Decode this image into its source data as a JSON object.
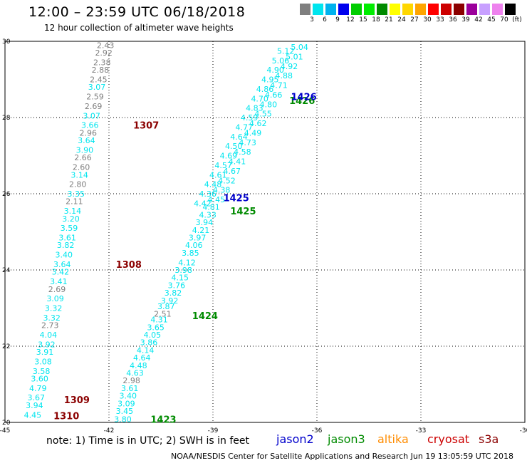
{
  "header": {
    "title": "12:00 – 23:59 UTC 06/18/2018",
    "subtitle": "12 hour collection of altimeter wave heights"
  },
  "legend_scale": {
    "labels": [
      "3",
      "6",
      "9",
      "12",
      "15",
      "18",
      "21",
      "24",
      "27",
      "30",
      "33",
      "36",
      "39",
      "42",
      "45",
      "70",
      "(ft)"
    ],
    "colors": [
      "#7f7f7f",
      "#00e5ee",
      "#00b2ee",
      "#0000ee",
      "#00cd00",
      "#00ee00",
      "#008b00",
      "#ffff00",
      "#ffd700",
      "#ffa500",
      "#ff0000",
      "#cd0000",
      "#8b0000",
      "#9b009b",
      "#c8a0ff",
      "#ee82ee",
      "#000000"
    ]
  },
  "footer": {
    "note": "note: 1) Time is in UTC; 2) SWH is in feet",
    "credit": "NOAA/NESDIS Center for Satellite Applications and Research     Jun 19 13:05:59 UTC 2018"
  },
  "satellites": [
    {
      "name": "jason2",
      "color": "#0000cc"
    },
    {
      "name": "jason3",
      "color": "#008b00"
    },
    {
      "name": "altika",
      "color": "#ff8c00"
    },
    {
      "name": "cryosat",
      "color": "#cc0000"
    },
    {
      "name": "s3a",
      "color": "#8b0000"
    }
  ],
  "chart_data": {
    "type": "scatter",
    "xlim": [
      -45,
      -30
    ],
    "ylim": [
      20,
      30
    ],
    "x_ticks": [
      "-45",
      "-42",
      "-39",
      "-36",
      "-33",
      "-30"
    ],
    "y_ticks": [
      "20",
      "22",
      "24",
      "26",
      "28",
      "30"
    ],
    "grid": true,
    "tracks": [
      {
        "satellite": "s3a",
        "time_labels": [
          {
            "text": "1307",
            "x": -41.3,
            "y": 27.8
          },
          {
            "text": "1308",
            "x": -41.8,
            "y": 24.15
          },
          {
            "text": "1309",
            "x": -43.3,
            "y": 20.6
          },
          {
            "text": "1310",
            "x": -43.6,
            "y": 20.18
          }
        ],
        "points": [
          {
            "x": -42.1,
            "y": 29.9,
            "v": "2.43",
            "c": "#7f7f7f"
          },
          {
            "x": -42.15,
            "y": 29.7,
            "v": "2.92",
            "c": "#7f7f7f"
          },
          {
            "x": -42.2,
            "y": 29.45,
            "v": "2.38",
            "c": "#7f7f7f"
          },
          {
            "x": -42.25,
            "y": 29.25,
            "v": "2.88",
            "c": "#7f7f7f"
          },
          {
            "x": -42.3,
            "y": 29.0,
            "v": "2.45",
            "c": "#7f7f7f"
          },
          {
            "x": -42.35,
            "y": 28.8,
            "v": "3.07",
            "c": "#00e5ee"
          },
          {
            "x": -42.4,
            "y": 28.55,
            "v": "2.59",
            "c": "#7f7f7f"
          },
          {
            "x": -42.45,
            "y": 28.3,
            "v": "2.69",
            "c": "#7f7f7f"
          },
          {
            "x": -42.5,
            "y": 28.05,
            "v": "3.07",
            "c": "#00e5ee"
          },
          {
            "x": -42.55,
            "y": 27.8,
            "v": "3.66",
            "c": "#00e5ee"
          },
          {
            "x": -42.6,
            "y": 27.6,
            "v": "2.96",
            "c": "#7f7f7f"
          },
          {
            "x": -42.65,
            "y": 27.4,
            "v": "3.64",
            "c": "#00e5ee"
          },
          {
            "x": -42.7,
            "y": 27.15,
            "v": "3.90",
            "c": "#00e5ee"
          },
          {
            "x": -42.75,
            "y": 26.95,
            "v": "2.66",
            "c": "#7f7f7f"
          },
          {
            "x": -42.8,
            "y": 26.7,
            "v": "2.60",
            "c": "#7f7f7f"
          },
          {
            "x": -42.85,
            "y": 26.5,
            "v": "3.14",
            "c": "#00e5ee"
          },
          {
            "x": -42.9,
            "y": 26.25,
            "v": "2.80",
            "c": "#7f7f7f"
          },
          {
            "x": -42.95,
            "y": 26.0,
            "v": "3.35",
            "c": "#00e5ee"
          },
          {
            "x": -43.0,
            "y": 25.8,
            "v": "2.11",
            "c": "#7f7f7f"
          },
          {
            "x": -43.05,
            "y": 25.55,
            "v": "3.14",
            "c": "#00e5ee"
          },
          {
            "x": -43.1,
            "y": 25.35,
            "v": "3.20",
            "c": "#00e5ee"
          },
          {
            "x": -43.15,
            "y": 25.1,
            "v": "3.59",
            "c": "#00e5ee"
          },
          {
            "x": -43.2,
            "y": 24.85,
            "v": "3.61",
            "c": "#00e5ee"
          },
          {
            "x": -43.25,
            "y": 24.65,
            "v": "3.82",
            "c": "#00e5ee"
          },
          {
            "x": -43.3,
            "y": 24.4,
            "v": "3.40",
            "c": "#00e5ee"
          },
          {
            "x": -43.35,
            "y": 24.15,
            "v": "3.64",
            "c": "#00e5ee"
          },
          {
            "x": -43.4,
            "y": 23.95,
            "v": "3.42",
            "c": "#00e5ee"
          },
          {
            "x": -43.45,
            "y": 23.7,
            "v": "3.41",
            "c": "#00e5ee"
          },
          {
            "x": -43.5,
            "y": 23.5,
            "v": "2.69",
            "c": "#7f7f7f"
          },
          {
            "x": -43.55,
            "y": 23.25,
            "v": "3.09",
            "c": "#00e5ee"
          },
          {
            "x": -43.6,
            "y": 23.0,
            "v": "3.32",
            "c": "#00e5ee"
          },
          {
            "x": -43.65,
            "y": 22.75,
            "v": "3.32",
            "c": "#00e5ee"
          },
          {
            "x": -43.7,
            "y": 22.55,
            "v": "2.73",
            "c": "#7f7f7f"
          },
          {
            "x": -43.75,
            "y": 22.3,
            "v": "4.04",
            "c": "#00e5ee"
          },
          {
            "x": -43.8,
            "y": 22.05,
            "v": "3.92",
            "c": "#00e5ee"
          },
          {
            "x": -43.85,
            "y": 21.85,
            "v": "3.91",
            "c": "#00e5ee"
          },
          {
            "x": -43.9,
            "y": 21.6,
            "v": "3.08",
            "c": "#00e5ee"
          },
          {
            "x": -43.95,
            "y": 21.35,
            "v": "3.58",
            "c": "#00e5ee"
          },
          {
            "x": -44.0,
            "y": 21.15,
            "v": "3.60",
            "c": "#00e5ee"
          },
          {
            "x": -44.05,
            "y": 20.9,
            "v": "4.79",
            "c": "#00e5ee"
          },
          {
            "x": -44.1,
            "y": 20.65,
            "v": "3.67",
            "c": "#00e5ee"
          },
          {
            "x": -44.15,
            "y": 20.45,
            "v": "3.94",
            "c": "#00e5ee"
          },
          {
            "x": -44.2,
            "y": 20.2,
            "v": "4.45",
            "c": "#00e5ee"
          }
        ]
      },
      {
        "satellite": "jason3",
        "time_labels": [
          {
            "text": "1423",
            "x": -40.8,
            "y": 20.08
          },
          {
            "text": "1424",
            "x": -39.6,
            "y": 22.8
          },
          {
            "text": "1425",
            "x": -38.5,
            "y": 25.55
          },
          {
            "text": "1426",
            "x": -36.8,
            "y": 28.45
          }
        ],
        "points": [
          {
            "x": -41.6,
            "y": 20.08,
            "v": "3.80",
            "c": "#00e5ee"
          },
          {
            "x": -41.55,
            "y": 20.3,
            "v": "3.45",
            "c": "#00e5ee"
          },
          {
            "x": -41.5,
            "y": 20.5,
            "v": "3.09",
            "c": "#00e5ee"
          },
          {
            "x": -41.45,
            "y": 20.7,
            "v": "3.40",
            "c": "#00e5ee"
          },
          {
            "x": -41.4,
            "y": 20.9,
            "v": "3.61",
            "c": "#00e5ee"
          },
          {
            "x": -41.35,
            "y": 21.1,
            "v": "2.98",
            "c": "#7f7f7f"
          },
          {
            "x": -41.25,
            "y": 21.3,
            "v": "4.63",
            "c": "#00e5ee"
          },
          {
            "x": -41.15,
            "y": 21.5,
            "v": "4.48",
            "c": "#00e5ee"
          },
          {
            "x": -41.05,
            "y": 21.7,
            "v": "4.64",
            "c": "#00e5ee"
          },
          {
            "x": -40.95,
            "y": 21.9,
            "v": "4.14",
            "c": "#00e5ee"
          },
          {
            "x": -40.85,
            "y": 22.1,
            "v": "3.86",
            "c": "#00e5ee"
          },
          {
            "x": -40.75,
            "y": 22.3,
            "v": "4.05",
            "c": "#00e5ee"
          },
          {
            "x": -40.65,
            "y": 22.5,
            "v": "3.65",
            "c": "#00e5ee"
          },
          {
            "x": -40.55,
            "y": 22.7,
            "v": "4.31",
            "c": "#00e5ee"
          },
          {
            "x": -40.45,
            "y": 22.85,
            "v": "2.51",
            "c": "#7f7f7f"
          },
          {
            "x": -40.35,
            "y": 23.05,
            "v": "3.87",
            "c": "#00e5ee"
          },
          {
            "x": -40.25,
            "y": 23.2,
            "v": "3.92",
            "c": "#00e5ee"
          },
          {
            "x": -40.15,
            "y": 23.4,
            "v": "3.82",
            "c": "#00e5ee"
          },
          {
            "x": -40.05,
            "y": 23.6,
            "v": "3.76",
            "c": "#00e5ee"
          },
          {
            "x": -39.95,
            "y": 23.8,
            "v": "4.15",
            "c": "#00e5ee"
          },
          {
            "x": -39.85,
            "y": 24.0,
            "v": "3.98",
            "c": "#00e5ee"
          },
          {
            "x": -39.75,
            "y": 24.2,
            "v": "4.12",
            "c": "#00e5ee"
          },
          {
            "x": -39.65,
            "y": 24.45,
            "v": "3.85",
            "c": "#00e5ee"
          },
          {
            "x": -39.55,
            "y": 24.65,
            "v": "4.06",
            "c": "#00e5ee"
          },
          {
            "x": -39.45,
            "y": 24.85,
            "v": "3.97",
            "c": "#00e5ee"
          },
          {
            "x": -39.35,
            "y": 25.05,
            "v": "4.21",
            "c": "#00e5ee"
          },
          {
            "x": -39.25,
            "y": 25.25,
            "v": "3.94",
            "c": "#00e5ee"
          },
          {
            "x": -39.15,
            "y": 25.45,
            "v": "4.33",
            "c": "#00e5ee"
          },
          {
            "x": -39.05,
            "y": 25.65,
            "v": "4.81",
            "c": "#00e5ee"
          },
          {
            "x": -38.9,
            "y": 25.85,
            "v": "4.45",
            "c": "#00e5ee"
          },
          {
            "x": -38.75,
            "y": 26.1,
            "v": "4.38",
            "c": "#00e5ee"
          },
          {
            "x": -38.6,
            "y": 26.35,
            "v": "4.52",
            "c": "#00e5ee"
          },
          {
            "x": -38.45,
            "y": 26.6,
            "v": "4.67",
            "c": "#00e5ee"
          },
          {
            "x": -38.3,
            "y": 26.85,
            "v": "4.41",
            "c": "#00e5ee"
          },
          {
            "x": -38.15,
            "y": 27.1,
            "v": "4.58",
            "c": "#00e5ee"
          },
          {
            "x": -38.0,
            "y": 27.35,
            "v": "4.73",
            "c": "#00e5ee"
          },
          {
            "x": -37.85,
            "y": 27.6,
            "v": "4.49",
            "c": "#00e5ee"
          },
          {
            "x": -37.7,
            "y": 27.85,
            "v": "4.62",
            "c": "#00e5ee"
          },
          {
            "x": -37.55,
            "y": 28.1,
            "v": "4.55",
            "c": "#00e5ee"
          },
          {
            "x": -37.4,
            "y": 28.35,
            "v": "4.80",
            "c": "#00e5ee"
          },
          {
            "x": -37.25,
            "y": 28.6,
            "v": "4.66",
            "c": "#00e5ee"
          },
          {
            "x": -37.1,
            "y": 28.85,
            "v": "4.71",
            "c": "#00e5ee"
          },
          {
            "x": -36.95,
            "y": 29.1,
            "v": "4.88",
            "c": "#00e5ee"
          },
          {
            "x": -36.8,
            "y": 29.35,
            "v": "4.92",
            "c": "#00e5ee"
          },
          {
            "x": -36.65,
            "y": 29.6,
            "v": "5.01",
            "c": "#00e5ee"
          },
          {
            "x": -36.5,
            "y": 29.85,
            "v": "5.04",
            "c": "#00e5ee"
          }
        ]
      },
      {
        "satellite": "jason2",
        "time_labels": [
          {
            "text": "1425",
            "x": -38.7,
            "y": 25.9
          },
          {
            "text": "1426",
            "x": -36.75,
            "y": 28.55
          }
        ],
        "points": [
          {
            "x": -39.3,
            "y": 25.75,
            "v": "4.42",
            "c": "#00e5ee"
          },
          {
            "x": -39.15,
            "y": 26.0,
            "v": "4.36",
            "c": "#00e5ee"
          },
          {
            "x": -39.0,
            "y": 26.25,
            "v": "4.48",
            "c": "#00e5ee"
          },
          {
            "x": -38.85,
            "y": 26.5,
            "v": "4.61",
            "c": "#00e5ee"
          },
          {
            "x": -38.7,
            "y": 26.75,
            "v": "4.57",
            "c": "#00e5ee"
          },
          {
            "x": -38.55,
            "y": 27.0,
            "v": "4.69",
            "c": "#00e5ee"
          },
          {
            "x": -38.4,
            "y": 27.25,
            "v": "4.50",
            "c": "#00e5ee"
          },
          {
            "x": -38.25,
            "y": 27.5,
            "v": "4.64",
            "c": "#00e5ee"
          },
          {
            "x": -38.1,
            "y": 27.75,
            "v": "4.77",
            "c": "#00e5ee"
          },
          {
            "x": -37.95,
            "y": 28.0,
            "v": "4.59",
            "c": "#00e5ee"
          },
          {
            "x": -37.8,
            "y": 28.25,
            "v": "4.83",
            "c": "#00e5ee"
          },
          {
            "x": -37.65,
            "y": 28.5,
            "v": "4.70",
            "c": "#00e5ee"
          },
          {
            "x": -37.5,
            "y": 28.75,
            "v": "4.86",
            "c": "#00e5ee"
          },
          {
            "x": -37.35,
            "y": 29.0,
            "v": "4.95",
            "c": "#00e5ee"
          },
          {
            "x": -37.2,
            "y": 29.25,
            "v": "4.90",
            "c": "#00e5ee"
          },
          {
            "x": -37.05,
            "y": 29.5,
            "v": "5.06",
            "c": "#00e5ee"
          },
          {
            "x": -36.9,
            "y": 29.75,
            "v": "5.12",
            "c": "#00e5ee"
          }
        ]
      }
    ]
  }
}
